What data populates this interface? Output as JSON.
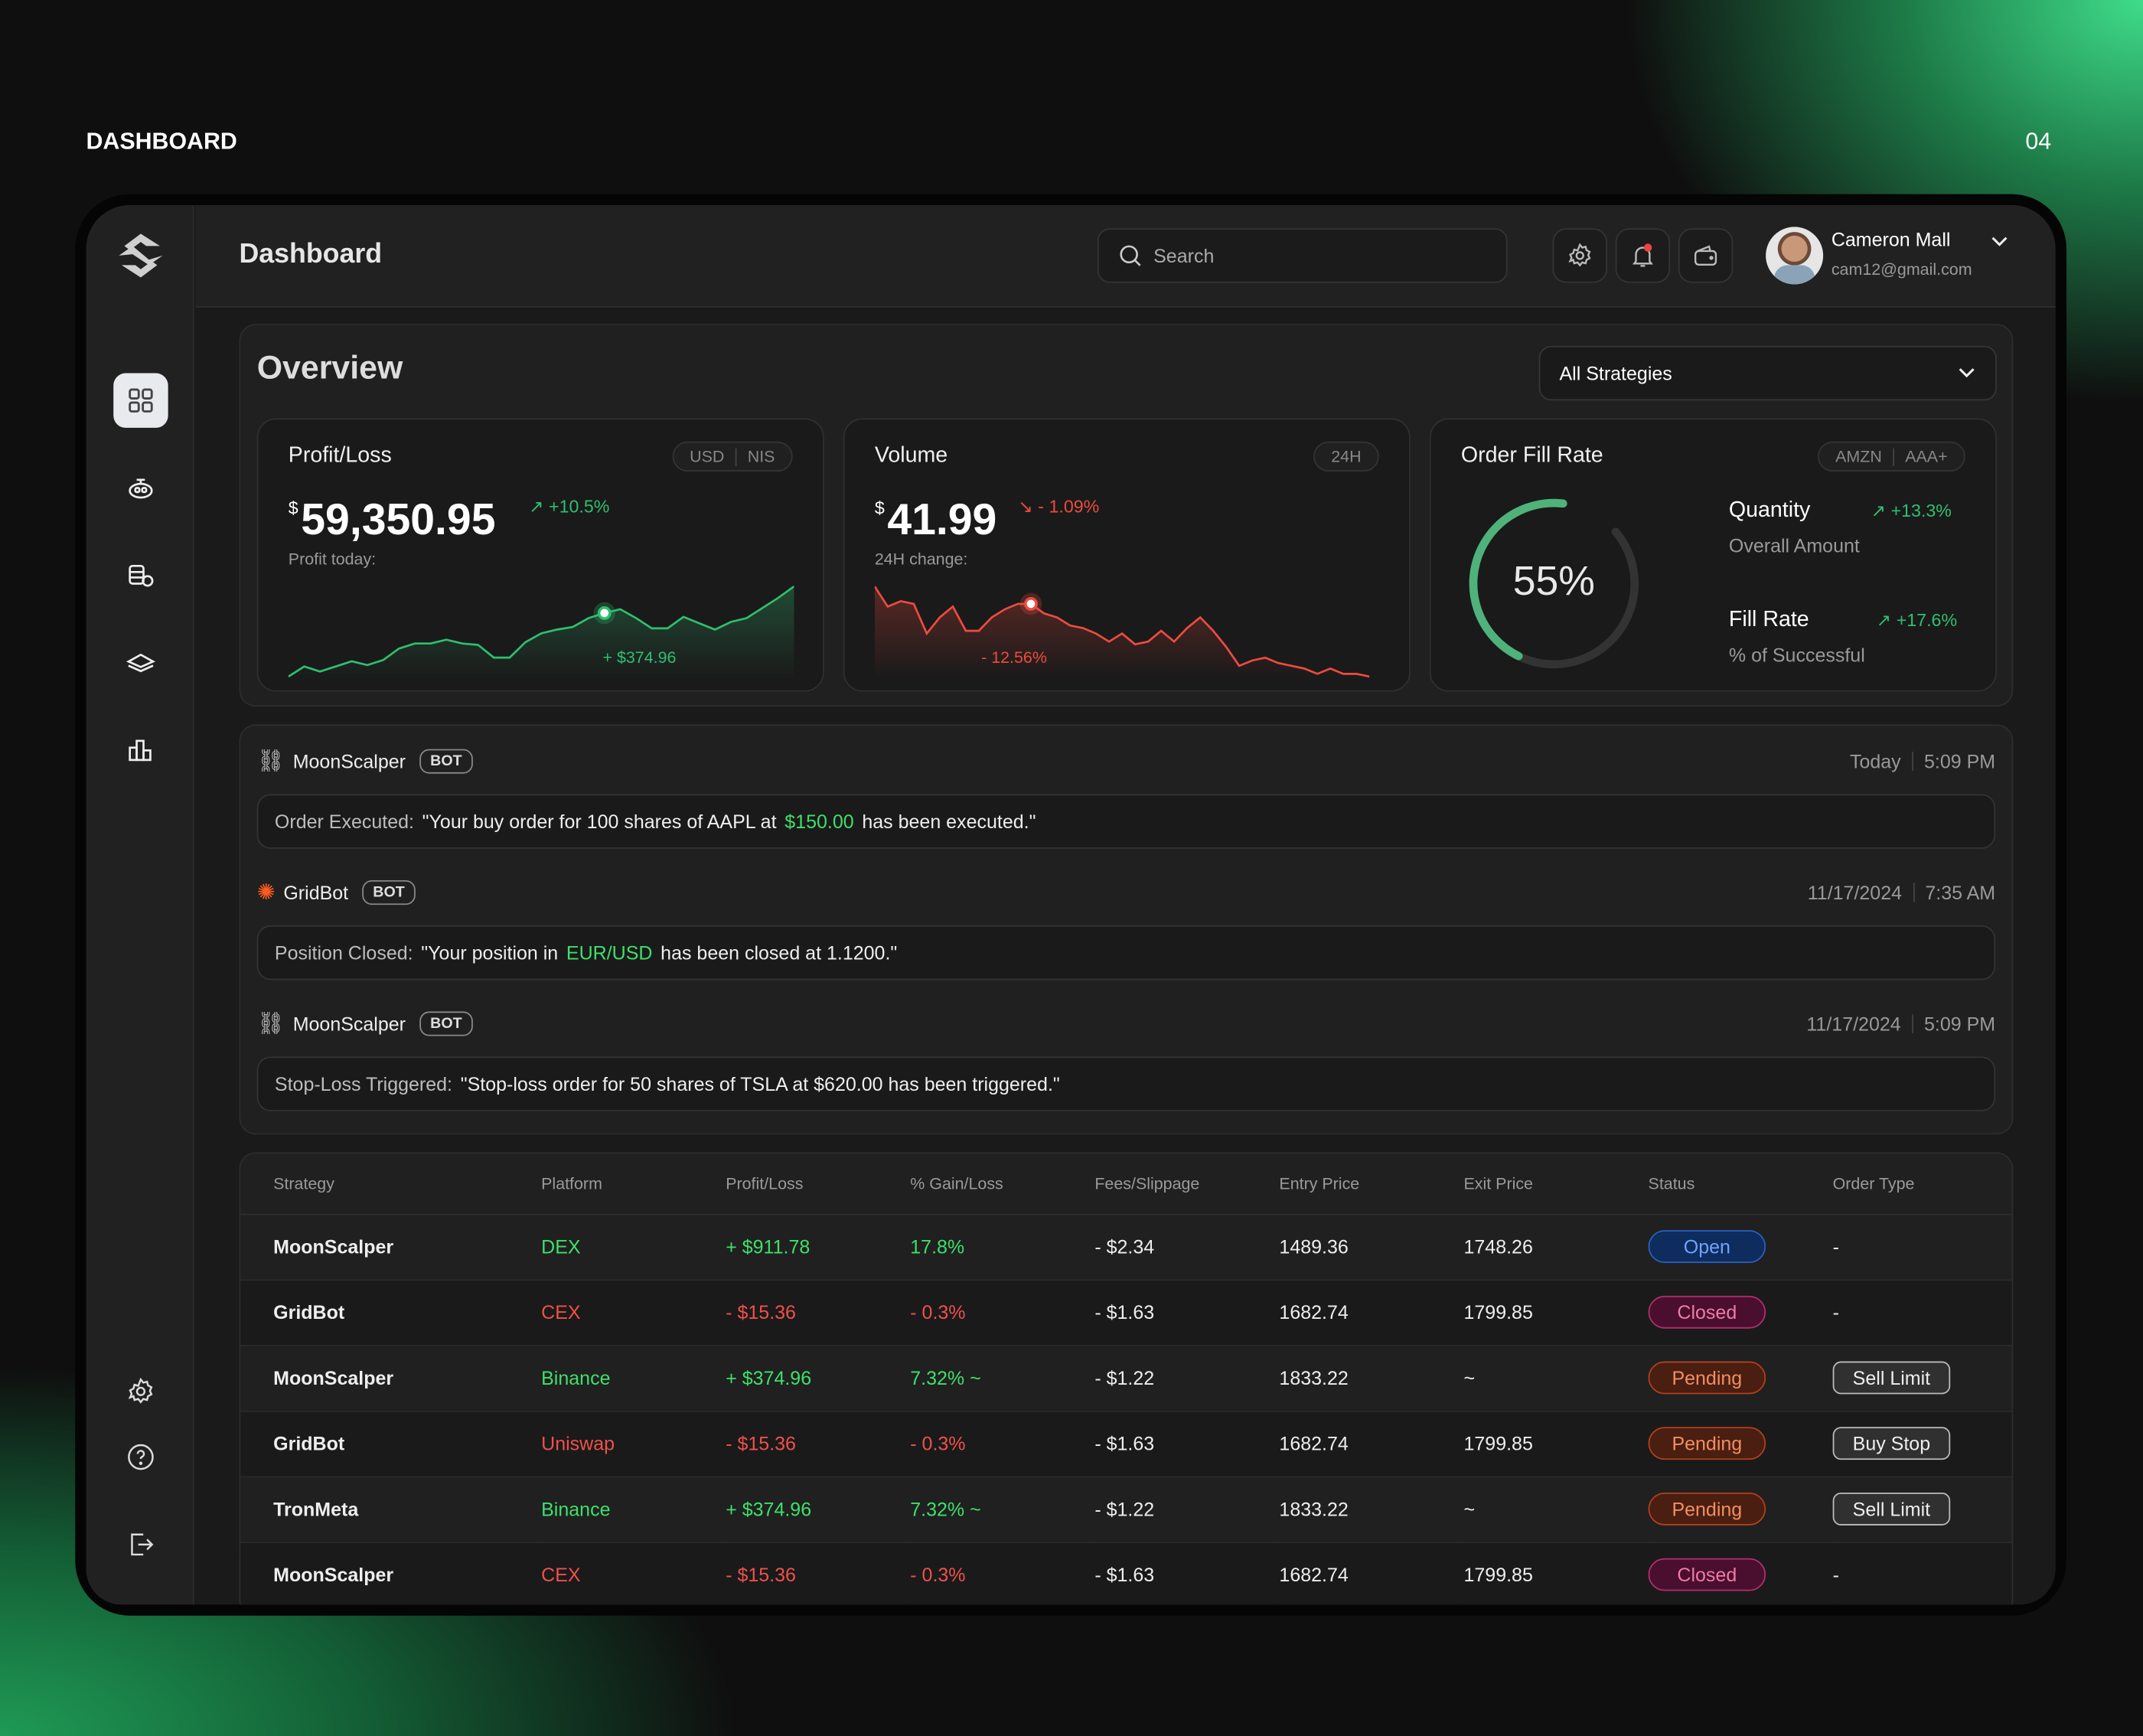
{
  "page_label": "DASHBOARD",
  "page_number": "04",
  "header": {
    "title": "Dashboard",
    "search_placeholder": "Search",
    "user_name": "Cameron Mall",
    "user_email": "cam12@gmail.com"
  },
  "overview": {
    "title": "Overview",
    "strategy_select": "All Strategies"
  },
  "profit_card": {
    "title": "Profit/Loss",
    "toggle": [
      "USD",
      "NIS"
    ],
    "currency": "$",
    "value": "59,350.95",
    "change": "+10.5%",
    "sub": "Profit today:",
    "tooltip": "+ $374.96",
    "series": [
      2,
      10,
      6,
      10,
      14,
      11,
      15,
      24,
      28,
      28,
      31,
      28,
      27,
      17,
      17,
      29,
      36,
      39,
      41,
      48,
      52,
      55,
      48,
      40,
      40,
      49,
      44,
      39,
      45,
      48,
      56,
      64,
      73
    ]
  },
  "volume_card": {
    "title": "Volume",
    "toggle": [
      "24H"
    ],
    "currency": "$",
    "value": "41.99",
    "change": "- 1.09%",
    "sub": "24H change:",
    "tooltip": "- 12.56%",
    "series": [
      75,
      60,
      64,
      62,
      40,
      52,
      60,
      42,
      42,
      52,
      58,
      62,
      62,
      55,
      52,
      46,
      44,
      40,
      34,
      40,
      32,
      34,
      42,
      34,
      44,
      52,
      42,
      30,
      16,
      20,
      22,
      18,
      16,
      14,
      10,
      14,
      10,
      10,
      8
    ]
  },
  "fill_card": {
    "title": "Order Fill Rate",
    "toggle": [
      "AMZN",
      "AAA+"
    ],
    "percent": 55,
    "percent_label": "55%",
    "metrics": [
      {
        "label": "Quantity",
        "sub": "Overall Amount",
        "change": "+13.3%"
      },
      {
        "label": "Fill Rate",
        "sub": "% of Successful",
        "change": "+17.6%"
      }
    ]
  },
  "notifications": [
    {
      "bot": "MoonScalper",
      "tag": "BOT",
      "date": "Today",
      "time": "5:09 PM",
      "label": "Order Executed:",
      "pre": "\"Your buy order for 100 shares of AAPL at",
      "highlight": "$150.00",
      "post": "has been executed.\""
    },
    {
      "bot": "GridBot",
      "tag": "BOT",
      "date": "11/17/2024",
      "time": "7:35 AM",
      "label": "Position Closed:",
      "pre": "\"Your position in",
      "highlight": "EUR/USD",
      "post": "has been closed at 1.1200.\""
    },
    {
      "bot": "MoonScalper",
      "tag": "BOT",
      "date": "11/17/2024",
      "time": "5:09 PM",
      "label": "Stop-Loss Triggered:",
      "pre": "\"Stop-loss order for 50 shares of TSLA at $620.00 has been triggered.\"",
      "highlight": "",
      "post": ""
    }
  ],
  "table": {
    "columns": [
      "Strategy",
      "Platform",
      "Profit/Loss",
      "% Gain/Loss",
      "Fees/Slippage",
      "Entry Price",
      "Exit Price",
      "Status",
      "Order Type"
    ],
    "rows": [
      {
        "strategy": "MoonScalper",
        "platform": "DEX",
        "pl": "+ $911.78",
        "gain": "17.8%",
        "fees": "- $2.34",
        "entry": "1489.36",
        "exit": "1748.26",
        "status": "Open",
        "order": "-",
        "pos": true
      },
      {
        "strategy": "GridBot",
        "platform": "CEX",
        "pl": "- $15.36",
        "gain": "- 0.3%",
        "fees": "- $1.63",
        "entry": "1682.74",
        "exit": "1799.85",
        "status": "Closed",
        "order": "-",
        "pos": false
      },
      {
        "strategy": "MoonScalper",
        "platform": "Binance",
        "pl": "+ $374.96",
        "gain": "7.32% ~",
        "fees": "- $1.22",
        "entry": "1833.22",
        "exit": "~",
        "status": "Pending",
        "order": "Sell Limit",
        "pos": true
      },
      {
        "strategy": "GridBot",
        "platform": "Uniswap",
        "pl": "- $15.36",
        "gain": "- 0.3%",
        "fees": "- $1.63",
        "entry": "1682.74",
        "exit": "1799.85",
        "status": "Pending",
        "order": "Buy Stop",
        "pos": false
      },
      {
        "strategy": "TronMeta",
        "platform": "Binance",
        "pl": "+ $374.96",
        "gain": "7.32% ~",
        "fees": "- $1.22",
        "entry": "1833.22",
        "exit": "~",
        "status": "Pending",
        "order": "Sell Limit",
        "pos": true
      },
      {
        "strategy": "MoonScalper",
        "platform": "CEX",
        "pl": "- $15.36",
        "gain": "- 0.3%",
        "fees": "- $1.63",
        "entry": "1682.74",
        "exit": "1799.85",
        "status": "Closed",
        "order": "-",
        "pos": false
      }
    ]
  }
}
